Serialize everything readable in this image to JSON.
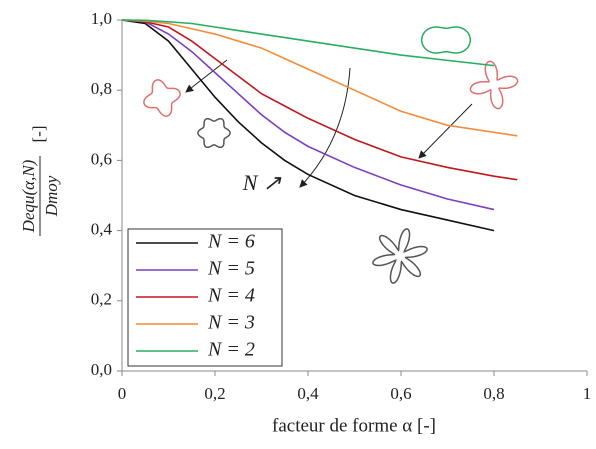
{
  "chart_data": {
    "type": "line",
    "y_label_numerator": "Dequ(α,N)",
    "y_label_denominator": "Dmoy",
    "y_label_unit": "[-]",
    "x_label": "facteur de forme α [-]",
    "annotation": "N ↗",
    "x": [
      0,
      0.05,
      0.1,
      0.15,
      0.2,
      0.25,
      0.3,
      0.35,
      0.4,
      0.5,
      0.6,
      0.7,
      0.8,
      0.85
    ],
    "series": [
      {
        "name": "N = 6",
        "color": "#111111",
        "values": [
          1,
          0.99,
          0.94,
          0.86,
          0.78,
          0.71,
          0.65,
          0.6,
          0.56,
          0.5,
          0.46,
          0.43,
          0.4,
          null
        ]
      },
      {
        "name": "N = 5",
        "color": "#7b3fbf",
        "values": [
          1,
          0.995,
          0.96,
          0.91,
          0.85,
          0.79,
          0.73,
          0.68,
          0.64,
          0.58,
          0.53,
          0.49,
          0.46,
          null
        ]
      },
      {
        "name": "N = 4",
        "color": "#c0181e",
        "values": [
          1,
          0.995,
          0.98,
          0.94,
          0.89,
          0.84,
          0.79,
          0.755,
          0.72,
          0.66,
          0.61,
          0.58,
          0.555,
          0.545
        ]
      },
      {
        "name": "N = 3",
        "color": "#f28c3a",
        "values": [
          1,
          0.997,
          0.99,
          0.975,
          0.96,
          0.94,
          0.92,
          0.89,
          0.86,
          0.8,
          0.74,
          0.7,
          0.68,
          0.67
        ]
      },
      {
        "name": "N = 2",
        "color": "#27ae60",
        "values": [
          1,
          0.999,
          0.995,
          0.99,
          0.98,
          0.97,
          0.96,
          0.95,
          0.94,
          0.92,
          0.9,
          0.885,
          0.87,
          null
        ]
      }
    ],
    "xlim": [
      0,
      1
    ],
    "xticks": [
      0,
      {
        "value": 0.2,
        "label": "0,2"
      },
      {
        "value": 0.4,
        "label": "0,4"
      },
      {
        "value": 0.6,
        "label": "0,6"
      },
      {
        "value": 0.8,
        "label": "0,8"
      },
      1
    ],
    "ylim": [
      0,
      1
    ],
    "yticks": [
      {
        "value": 0,
        "label": "0,0"
      },
      {
        "value": 0.2,
        "label": "0,2"
      },
      {
        "value": 0.4,
        "label": "0,4"
      },
      {
        "value": 0.6,
        "label": "0,6"
      },
      {
        "value": 0.8,
        "label": "0,8"
      },
      {
        "value": 1,
        "label": "1,0"
      }
    ],
    "grid": false,
    "legend": "lower left"
  }
}
